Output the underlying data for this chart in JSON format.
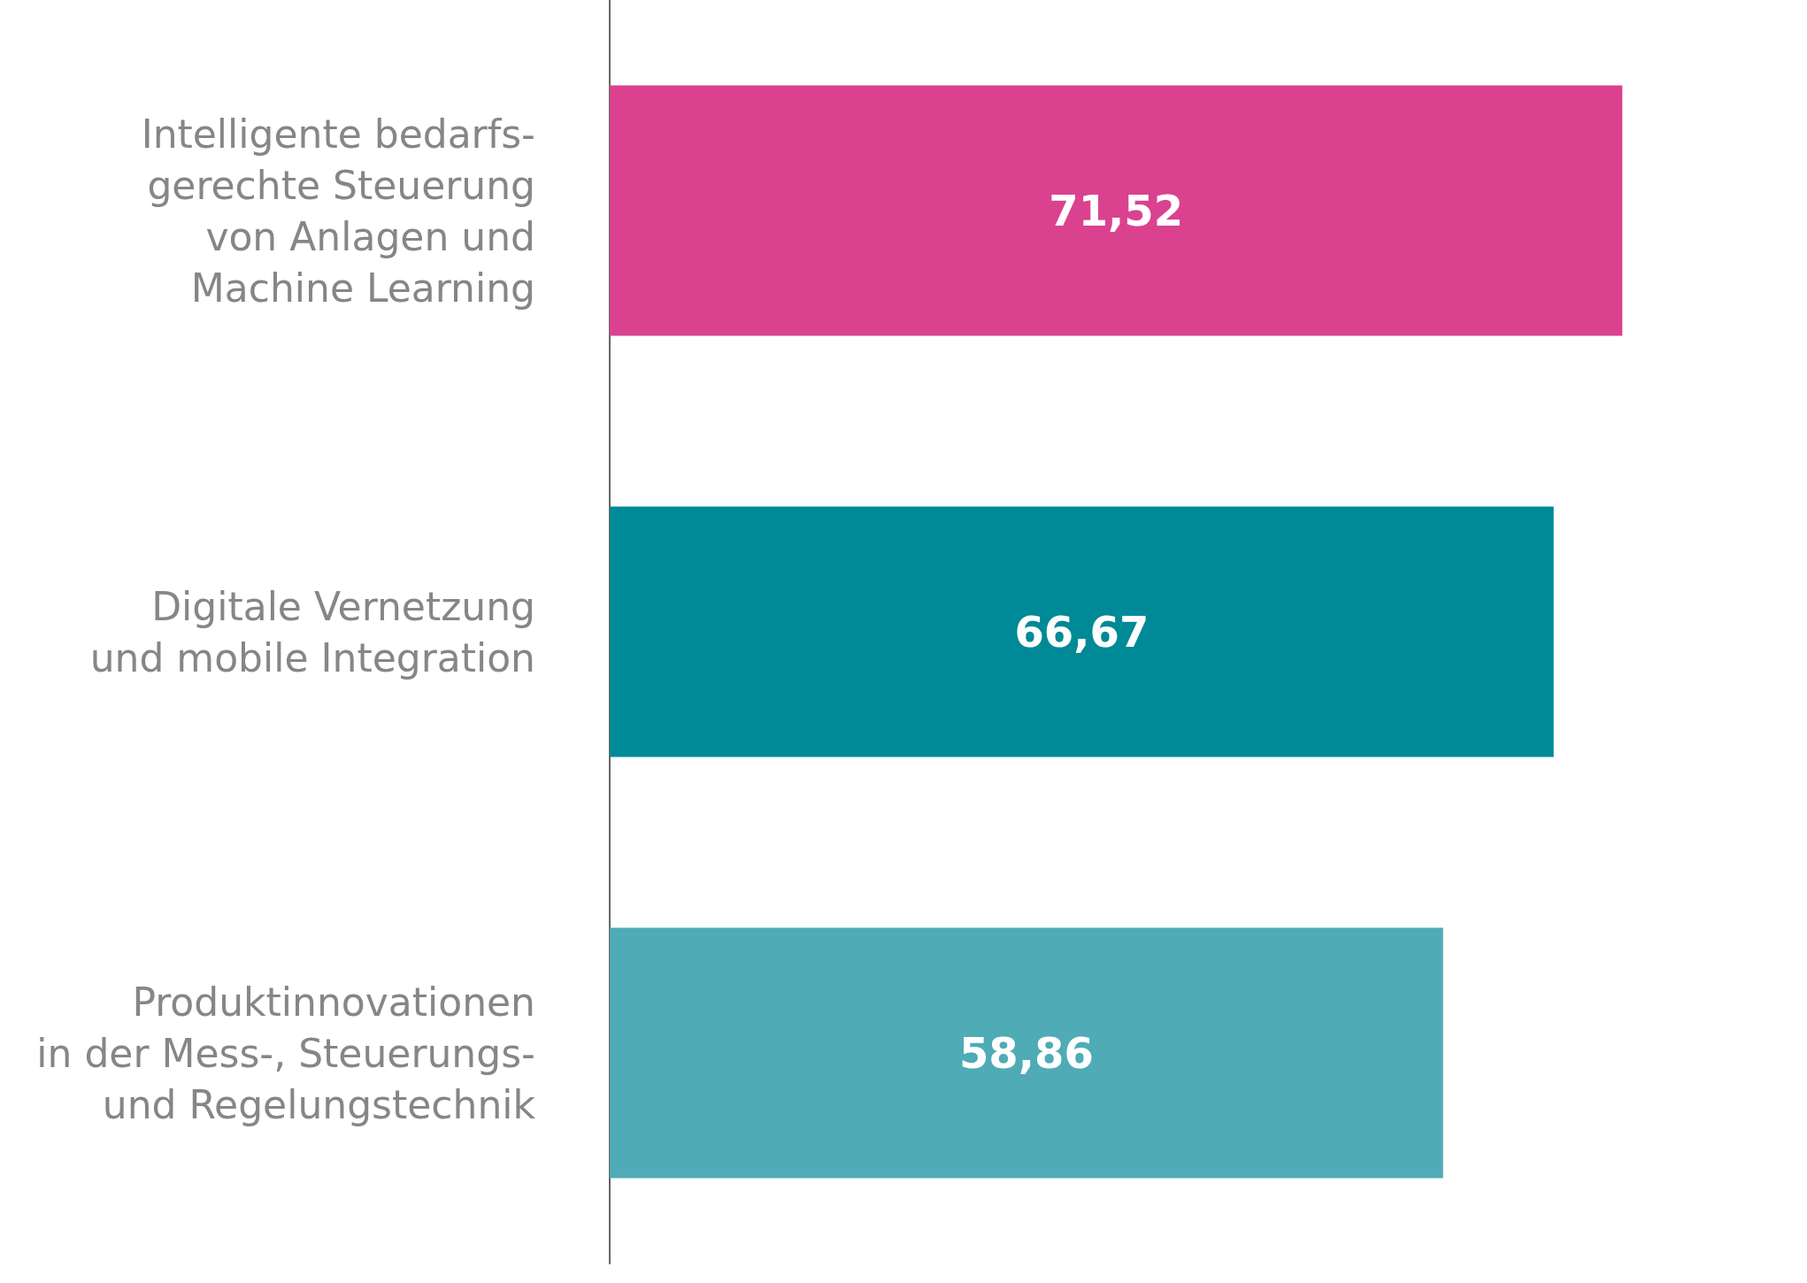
{
  "chart_data": {
    "type": "bar",
    "orientation": "horizontal",
    "categories": [
      "Intelligente bedarfs-\ngerechte Steuerung\nvon Anlagen und\nMachine Learning",
      "Digitale Vernetzung\nund mobile Integration",
      "Produktinnovationen\nin der Mess-, Steuerungs-\nund Regelungstechnik"
    ],
    "values": [
      71.52,
      66.67,
      58.86
    ],
    "colors": [
      "#da4290",
      "#008996",
      "#4fabb5"
    ],
    "value_labels": [
      "71,52",
      "66,67",
      "58,86"
    ],
    "tick_labels": "y",
    "grid": false
  }
}
